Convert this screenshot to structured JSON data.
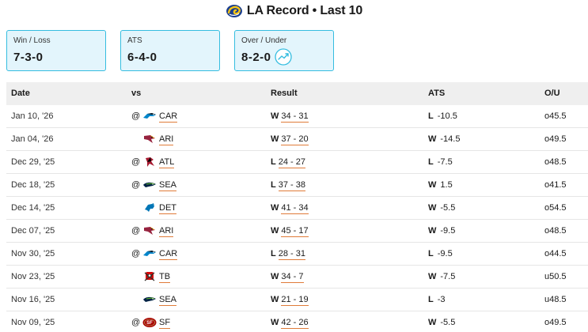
{
  "header": {
    "title": "LA Record • Last 10",
    "logo_icon": "rams-horn-logo"
  },
  "colors": {
    "card_bg": "#e3f5fc",
    "card_border": "#35bde0",
    "link_underline": "#e07b39",
    "header_row_bg": "#efefef"
  },
  "summary": [
    {
      "label": "Win / Loss",
      "value": "7-3-0"
    },
    {
      "label": "ATS",
      "value": "6-4-0"
    },
    {
      "label": "Over / Under",
      "value": "8-2-0",
      "icon": "trend-up-icon"
    }
  ],
  "table": {
    "columns": [
      "Date",
      "vs",
      "Result",
      "ATS",
      "O/U"
    ],
    "rows": [
      {
        "date": "Jan 10, '26",
        "at": "@",
        "team": "CAR",
        "logo": "panthers-logo",
        "wl": "W",
        "score": "34 - 31",
        "ats_wl": "L",
        "ats_line": "-10.5",
        "ou": "o45.5"
      },
      {
        "date": "Jan 04, '26",
        "at": "",
        "team": "ARI",
        "logo": "cardinals-logo",
        "wl": "W",
        "score": "37 - 20",
        "ats_wl": "W",
        "ats_line": "-14.5",
        "ou": "o49.5"
      },
      {
        "date": "Dec 29, '25",
        "at": "@",
        "team": "ATL",
        "logo": "falcons-logo",
        "wl": "L",
        "score": "24 - 27",
        "ats_wl": "L",
        "ats_line": "-7.5",
        "ou": "o48.5"
      },
      {
        "date": "Dec 18, '25",
        "at": "@",
        "team": "SEA",
        "logo": "seahawks-logo",
        "wl": "L",
        "score": "37 - 38",
        "ats_wl": "W",
        "ats_line": "1.5",
        "ou": "o41.5"
      },
      {
        "date": "Dec 14, '25",
        "at": "",
        "team": "DET",
        "logo": "lions-logo",
        "wl": "W",
        "score": "41 - 34",
        "ats_wl": "W",
        "ats_line": "-5.5",
        "ou": "o54.5"
      },
      {
        "date": "Dec 07, '25",
        "at": "@",
        "team": "ARI",
        "logo": "cardinals-logo",
        "wl": "W",
        "score": "45 - 17",
        "ats_wl": "W",
        "ats_line": "-9.5",
        "ou": "o48.5"
      },
      {
        "date": "Nov 30, '25",
        "at": "@",
        "team": "CAR",
        "logo": "panthers-logo",
        "wl": "L",
        "score": "28 - 31",
        "ats_wl": "L",
        "ats_line": "-9.5",
        "ou": "o44.5"
      },
      {
        "date": "Nov 23, '25",
        "at": "",
        "team": "TB",
        "logo": "buccaneers-logo",
        "wl": "W",
        "score": "34 - 7",
        "ats_wl": "W",
        "ats_line": "-7.5",
        "ou": "u50.5"
      },
      {
        "date": "Nov 16, '25",
        "at": "",
        "team": "SEA",
        "logo": "seahawks-logo",
        "wl": "W",
        "score": "21 - 19",
        "ats_wl": "L",
        "ats_line": "-3",
        "ou": "u48.5"
      },
      {
        "date": "Nov 09, '25",
        "at": "@",
        "team": "SF",
        "logo": "49ers-logo",
        "wl": "W",
        "score": "42 - 26",
        "ats_wl": "W",
        "ats_line": "-5.5",
        "ou": "o49.5"
      }
    ]
  }
}
